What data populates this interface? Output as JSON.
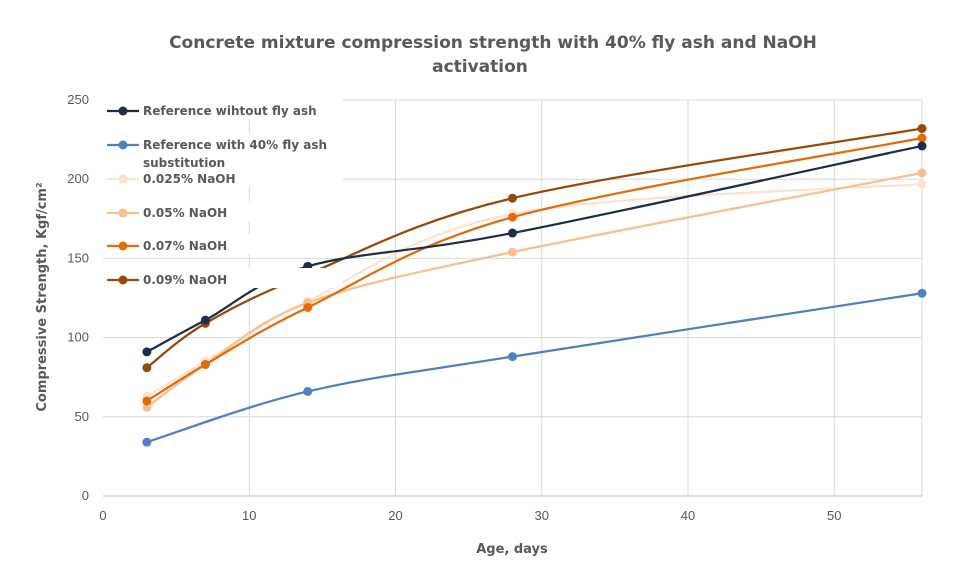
{
  "chart_data": {
    "type": "line",
    "title": [
      "Concrete mixture compression strength with 40%  fly ash and NaOH",
      "activation"
    ],
    "xlabel": "Age, days",
    "ylabel": "Compressive Strength, Kgf/cm²",
    "xlim": [
      0,
      56
    ],
    "ylim": [
      0,
      250
    ],
    "xticks": [
      0,
      10,
      20,
      30,
      40,
      50
    ],
    "yticks": [
      0,
      50,
      100,
      150,
      200,
      250
    ],
    "grid": "both",
    "legend_position": "top-left",
    "smooth": true,
    "series": [
      {
        "name": "Reference wihtout fly ash",
        "color": "#1f2d4a",
        "x": [
          3,
          7,
          14,
          28,
          56
        ],
        "y": [
          91,
          111,
          145,
          166,
          221
        ]
      },
      {
        "name": [
          "Reference with 40% fly ash",
          "substitution"
        ],
        "color": "#4f81bd",
        "x": [
          3,
          14,
          28,
          56
        ],
        "y": [
          34,
          66,
          88,
          128
        ]
      },
      {
        "name": "0.025% NaOH",
        "color": "#fbe3cf",
        "x": [
          3,
          7,
          14,
          28,
          56
        ],
        "y": [
          63,
          85,
          123,
          178,
          197
        ]
      },
      {
        "name": "0.05% NaOH",
        "color": "#f8c08f",
        "x": [
          3,
          7,
          14,
          28,
          56
        ],
        "y": [
          56,
          83,
          122,
          154,
          204
        ]
      },
      {
        "name": "0.07% NaOH",
        "color": "#e36c0a",
        "x": [
          3,
          7,
          14,
          28,
          56
        ],
        "y": [
          60,
          83,
          119,
          176,
          226
        ]
      },
      {
        "name": "0.09% NaOH",
        "color": "#984807",
        "x": [
          3,
          7,
          14,
          28,
          56
        ],
        "y": [
          81,
          109,
          140,
          188,
          232
        ]
      }
    ]
  }
}
